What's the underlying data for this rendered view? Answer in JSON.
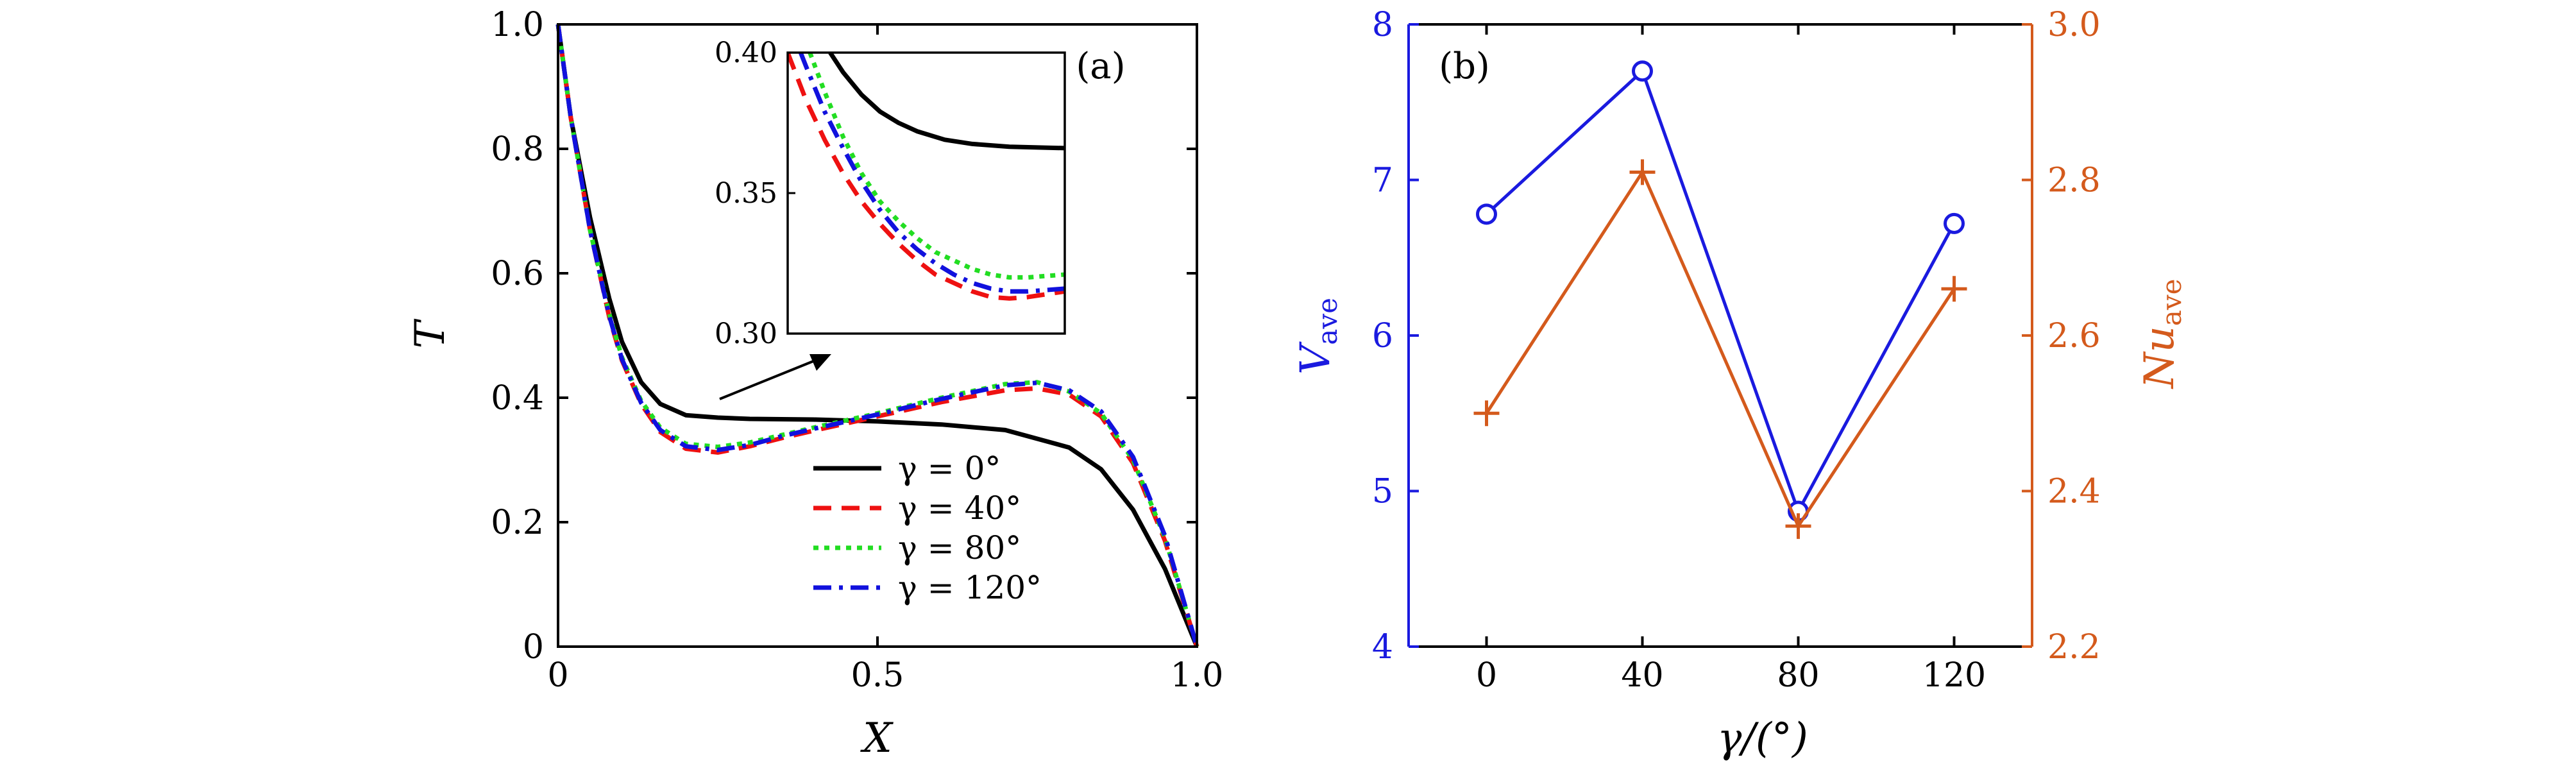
{
  "chart_data": [
    {
      "panel": "(a)",
      "type": "line",
      "xlabel": "X",
      "ylabel": "T",
      "xlim": [
        0,
        1
      ],
      "ylim": [
        0,
        1
      ],
      "x_ticks": [
        0,
        0.5,
        1.0
      ],
      "x_tick_labels": [
        "0",
        "0.5",
        "1.0"
      ],
      "y_ticks": [
        0,
        0.2,
        0.4,
        0.6,
        0.8,
        1.0
      ],
      "y_tick_labels": [
        "0",
        "0.2",
        "0.4",
        "0.6",
        "0.8",
        "1.0"
      ],
      "legend_position": "bottom-right",
      "series": [
        {
          "name": "γ = 0°",
          "color": "#000000",
          "style": "solid",
          "x": [
            0,
            0.02,
            0.05,
            0.08,
            0.1,
            0.13,
            0.16,
            0.2,
            0.25,
            0.3,
            0.4,
            0.5,
            0.6,
            0.7,
            0.8,
            0.85,
            0.9,
            0.95,
            1.0
          ],
          "y": [
            1.0,
            0.85,
            0.69,
            0.56,
            0.49,
            0.425,
            0.39,
            0.372,
            0.368,
            0.366,
            0.365,
            0.362,
            0.357,
            0.348,
            0.32,
            0.285,
            0.22,
            0.125,
            0.0
          ]
        },
        {
          "name": "γ = 40°",
          "color": "#ee1111",
          "style": "dashed",
          "x": [
            0,
            0.02,
            0.05,
            0.08,
            0.1,
            0.13,
            0.16,
            0.2,
            0.25,
            0.3,
            0.35,
            0.4,
            0.5,
            0.6,
            0.7,
            0.75,
            0.8,
            0.85,
            0.9,
            0.95,
            1.0
          ],
          "y": [
            1.0,
            0.85,
            0.67,
            0.53,
            0.46,
            0.39,
            0.345,
            0.318,
            0.312,
            0.322,
            0.335,
            0.347,
            0.37,
            0.393,
            0.412,
            0.415,
            0.405,
            0.37,
            0.295,
            0.17,
            0.0
          ]
        },
        {
          "name": "γ = 80°",
          "color": "#22dd22",
          "style": "dotted",
          "x": [
            0,
            0.02,
            0.05,
            0.08,
            0.1,
            0.13,
            0.16,
            0.2,
            0.25,
            0.3,
            0.35,
            0.4,
            0.5,
            0.6,
            0.7,
            0.75,
            0.8,
            0.85,
            0.9,
            0.95,
            1.0
          ],
          "y": [
            1.0,
            0.85,
            0.67,
            0.535,
            0.465,
            0.395,
            0.352,
            0.326,
            0.321,
            0.328,
            0.34,
            0.352,
            0.375,
            0.4,
            0.422,
            0.425,
            0.41,
            0.375,
            0.3,
            0.175,
            0.0
          ]
        },
        {
          "name": "γ = 120°",
          "color": "#1111dd",
          "style": "dashdot",
          "x": [
            0,
            0.02,
            0.05,
            0.08,
            0.1,
            0.13,
            0.16,
            0.2,
            0.25,
            0.3,
            0.35,
            0.4,
            0.5,
            0.6,
            0.7,
            0.75,
            0.8,
            0.85,
            0.9,
            0.95,
            1.0
          ],
          "y": [
            1.0,
            0.85,
            0.67,
            0.532,
            0.462,
            0.392,
            0.348,
            0.322,
            0.316,
            0.324,
            0.338,
            0.35,
            0.373,
            0.398,
            0.42,
            0.424,
            0.412,
            0.378,
            0.305,
            0.178,
            0.0
          ]
        }
      ],
      "inset": {
        "xlim": [
          0.15,
          0.3
        ],
        "ylim": [
          0.3,
          0.4
        ],
        "y_ticks": [
          0.3,
          0.35,
          0.4
        ],
        "y_tick_labels": [
          "0.30",
          "0.35",
          "0.40"
        ],
        "series": [
          {
            "name": "γ = 0°",
            "x": [
              0.173,
              0.18,
              0.19,
              0.2,
              0.21,
              0.22,
              0.235,
              0.25,
              0.27,
              0.3
            ],
            "y": [
              0.4,
              0.393,
              0.385,
              0.379,
              0.375,
              0.372,
              0.369,
              0.3675,
              0.3665,
              0.366
            ]
          },
          {
            "name": "γ = 40°",
            "x": [
              0.15,
              0.16,
              0.17,
              0.18,
              0.19,
              0.2,
              0.21,
              0.22,
              0.23,
              0.24,
              0.25,
              0.26,
              0.27,
              0.28,
              0.3
            ],
            "y": [
              0.4,
              0.383,
              0.369,
              0.357,
              0.347,
              0.339,
              0.332,
              0.326,
              0.321,
              0.318,
              0.315,
              0.313,
              0.3125,
              0.313,
              0.315
            ]
          },
          {
            "name": "γ = 80°",
            "x": [
              0.162,
              0.17,
              0.18,
              0.19,
              0.2,
              0.21,
              0.22,
              0.23,
              0.24,
              0.25,
              0.26,
              0.27,
              0.28,
              0.3
            ],
            "y": [
              0.4,
              0.386,
              0.37,
              0.357,
              0.347,
              0.34,
              0.334,
              0.329,
              0.326,
              0.323,
              0.321,
              0.32,
              0.32,
              0.321
            ]
          },
          {
            "name": "γ = 120°",
            "x": [
              0.157,
              0.16,
              0.17,
              0.18,
              0.19,
              0.2,
              0.21,
              0.22,
              0.23,
              0.24,
              0.25,
              0.26,
              0.27,
              0.28,
              0.3
            ],
            "y": [
              0.4,
              0.395,
              0.379,
              0.366,
              0.354,
              0.344,
              0.336,
              0.33,
              0.325,
              0.321,
              0.318,
              0.316,
              0.315,
              0.315,
              0.316
            ]
          }
        ]
      }
    },
    {
      "panel": "(b)",
      "type": "line",
      "xlabel": "γ/(°)",
      "categories": [
        0,
        40,
        80,
        120
      ],
      "x_tick_labels": [
        "0",
        "40",
        "80",
        "120"
      ],
      "xlim": [
        -20,
        140
      ],
      "left_axis": {
        "label": "V_ave",
        "label_main": "V",
        "label_sub": "ave",
        "color": "#1a1adf",
        "ylim": [
          4,
          8
        ],
        "ticks": [
          4,
          5,
          6,
          7,
          8
        ],
        "tick_labels": [
          "4",
          "5",
          "6",
          "7",
          "8"
        ]
      },
      "right_axis": {
        "label": "Nu_ave",
        "label_main": "Nu",
        "label_sub": "ave",
        "color": "#d45a1c",
        "ylim": [
          2.2,
          3.0
        ],
        "ticks": [
          2.2,
          2.4,
          2.6,
          2.8,
          3.0
        ],
        "tick_labels": [
          "2.2",
          "2.4",
          "2.6",
          "2.8",
          "3.0"
        ]
      },
      "series": [
        {
          "name": "V_ave",
          "axis": "left",
          "marker": "circle",
          "color": "#1a1adf",
          "values": [
            6.78,
            7.7,
            4.87,
            6.72
          ]
        },
        {
          "name": "Nu_ave",
          "axis": "right",
          "marker": "plus",
          "color": "#d45a1c",
          "values": [
            2.5,
            2.81,
            2.355,
            2.66
          ]
        }
      ]
    }
  ]
}
